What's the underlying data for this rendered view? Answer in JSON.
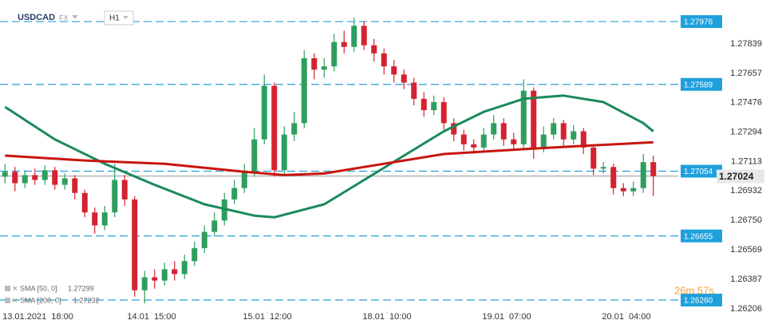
{
  "chart_data": {
    "type": "candlestick",
    "symbol": "USDCAD",
    "market": "FX",
    "timeframe": "H1",
    "countdown": "26m 57s",
    "up_color": "#2e9e5e",
    "down_color": "#d42330",
    "xlim": [
      -0.5,
      67.5
    ],
    "ylim": [
      1.26191,
      1.28109
    ],
    "xticks": [
      {
        "value": 3.3,
        "label": "13.01.2021  18:00"
      },
      {
        "value": 14.7,
        "label": "14.01  15:00"
      },
      {
        "value": 26.3,
        "label": "15.01  12:00"
      },
      {
        "value": 38.3,
        "label": "18.01  10:00"
      },
      {
        "value": 50.3,
        "label": "19.01  07:00"
      },
      {
        "value": 62.3,
        "label": "20.01  04:00"
      }
    ],
    "yticks": [
      1.27839,
      1.27657,
      1.27476,
      1.27294,
      1.27113,
      1.26932,
      {
        "value": 1.2675,
        "label": "1.26750"
      },
      1.26569,
      1.26387,
      1.26206
    ],
    "levels": [
      1.27976,
      1.27589,
      1.27054,
      1.26655,
      {
        "value": 1.2626,
        "label": "1.26260"
      }
    ],
    "ohlc": [
      [
        1.2702,
        1.271,
        1.2698,
        1.2705
      ],
      [
        1.2705,
        1.2708,
        1.2693,
        1.2698
      ],
      [
        1.2698,
        1.2706,
        1.2695,
        1.2703
      ],
      [
        1.2703,
        1.2707,
        1.2697,
        1.27
      ],
      [
        1.27,
        1.2709,
        1.2697,
        1.2706
      ],
      [
        1.2706,
        1.2708,
        1.2694,
        1.2697
      ],
      [
        1.2697,
        1.2704,
        1.2694,
        1.2701
      ],
      [
        1.2701,
        1.2703,
        1.2688,
        1.2692
      ],
      [
        1.2692,
        1.2694,
        1.2677,
        1.268
      ],
      [
        1.268,
        1.2683,
        1.2667,
        1.2672
      ],
      [
        1.2672,
        1.2684,
        1.2669,
        1.268
      ],
      [
        1.268,
        1.271,
        1.2677,
        1.27
      ],
      [
        1.27,
        1.2703,
        1.2684,
        1.2688
      ],
      [
        1.2688,
        1.269,
        1.2628,
        1.2632
      ],
      [
        1.2632,
        1.2644,
        1.2624,
        1.264
      ],
      [
        1.264,
        1.2645,
        1.2633,
        1.2638
      ],
      [
        1.2638,
        1.2649,
        1.2635,
        1.2645
      ],
      [
        1.2645,
        1.265,
        1.2638,
        1.2642
      ],
      [
        1.2642,
        1.2654,
        1.2639,
        1.265
      ],
      [
        1.265,
        1.2662,
        1.2647,
        1.2658
      ],
      [
        1.2658,
        1.2672,
        1.2655,
        1.2668
      ],
      [
        1.2668,
        1.268,
        1.2665,
        1.2675
      ],
      [
        1.2675,
        1.2692,
        1.2672,
        1.2688
      ],
      [
        1.2688,
        1.27,
        1.2685,
        1.2695
      ],
      [
        1.2695,
        1.271,
        1.2692,
        1.2705
      ],
      [
        1.2705,
        1.2732,
        1.2702,
        1.2725
      ],
      [
        1.2725,
        1.2765,
        1.2722,
        1.2758
      ],
      [
        1.2758,
        1.276,
        1.2702,
        1.2706
      ],
      [
        1.2706,
        1.2733,
        1.2703,
        1.2728
      ],
      [
        1.2728,
        1.2742,
        1.2724,
        1.2735
      ],
      [
        1.2735,
        1.278,
        1.2732,
        1.2775
      ],
      [
        1.2775,
        1.2778,
        1.2762,
        1.2768
      ],
      [
        1.2768,
        1.2775,
        1.2763,
        1.277
      ],
      [
        1.277,
        1.279,
        1.2767,
        1.2785
      ],
      [
        1.2785,
        1.2792,
        1.2778,
        1.2782
      ],
      [
        1.2782,
        1.28,
        1.2779,
        1.2795
      ],
      [
        1.2795,
        1.2798,
        1.278,
        1.2783
      ],
      [
        1.2783,
        1.2787,
        1.2773,
        1.2778
      ],
      [
        1.2778,
        1.2781,
        1.2765,
        1.277
      ],
      [
        1.277,
        1.2774,
        1.276,
        1.2765
      ],
      [
        1.2765,
        1.2768,
        1.2756,
        1.276
      ],
      [
        1.276,
        1.2763,
        1.2746,
        1.275
      ],
      [
        1.275,
        1.2754,
        1.2739,
        1.2743
      ],
      [
        1.2743,
        1.2752,
        1.274,
        1.2748
      ],
      [
        1.2748,
        1.2751,
        1.2731,
        1.2735
      ],
      [
        1.2735,
        1.2738,
        1.2724,
        1.2728
      ],
      [
        1.2728,
        1.2731,
        1.2718,
        1.2722
      ],
      [
        1.2722,
        1.2725,
        1.2716,
        1.272
      ],
      [
        1.272,
        1.2732,
        1.2717,
        1.2728
      ],
      [
        1.2728,
        1.274,
        1.2725,
        1.2735
      ],
      [
        1.2735,
        1.2738,
        1.2721,
        1.2725
      ],
      [
        1.2725,
        1.2729,
        1.2718,
        1.2722
      ],
      [
        1.2722,
        1.2762,
        1.2719,
        1.2755
      ],
      [
        1.2755,
        1.2757,
        1.2713,
        1.272
      ],
      [
        1.272,
        1.2733,
        1.2717,
        1.2728
      ],
      [
        1.2728,
        1.2738,
        1.2725,
        1.2735
      ],
      [
        1.2735,
        1.2737,
        1.2721,
        1.2725
      ],
      [
        1.2725,
        1.2734,
        1.2722,
        1.273
      ],
      [
        1.273,
        1.2732,
        1.2716,
        1.272
      ],
      [
        1.272,
        1.2722,
        1.2703,
        1.2707
      ],
      [
        1.2707,
        1.2711,
        1.2704,
        1.2708
      ],
      [
        1.2708,
        1.271,
        1.2691,
        1.2695
      ],
      [
        1.2695,
        1.2698,
        1.269,
        1.2693
      ],
      [
        1.2693,
        1.2699,
        1.269,
        1.2695
      ],
      [
        1.2695,
        1.2716,
        1.2692,
        1.2711
      ],
      [
        1.2711,
        1.2715,
        1.269,
        1.27024
      ]
    ],
    "indicators": [
      {
        "name": "SMA [50, 0]",
        "color": "#1b8a5a",
        "x": [
          0,
          5,
          10,
          15,
          20,
          25,
          27,
          32,
          36,
          40,
          44,
          48,
          52,
          56,
          60,
          64,
          65
        ],
        "values": [
          1.2745,
          1.2725,
          1.271,
          1.2697,
          1.2685,
          1.2678,
          1.2677,
          1.2685,
          1.27,
          1.2715,
          1.273,
          1.2742,
          1.275,
          1.2752,
          1.2748,
          1.2735,
          1.27299
        ]
      },
      {
        "name": "SMA [200, 0]",
        "color": "#c8150e",
        "x": [
          0,
          8,
          16,
          24,
          28,
          32,
          38,
          44,
          52,
          58,
          65
        ],
        "values": [
          1.2715,
          1.2712,
          1.271,
          1.2705,
          1.2703,
          1.2704,
          1.271,
          1.2716,
          1.2719,
          1.2721,
          1.27232
        ]
      }
    ]
  }
}
